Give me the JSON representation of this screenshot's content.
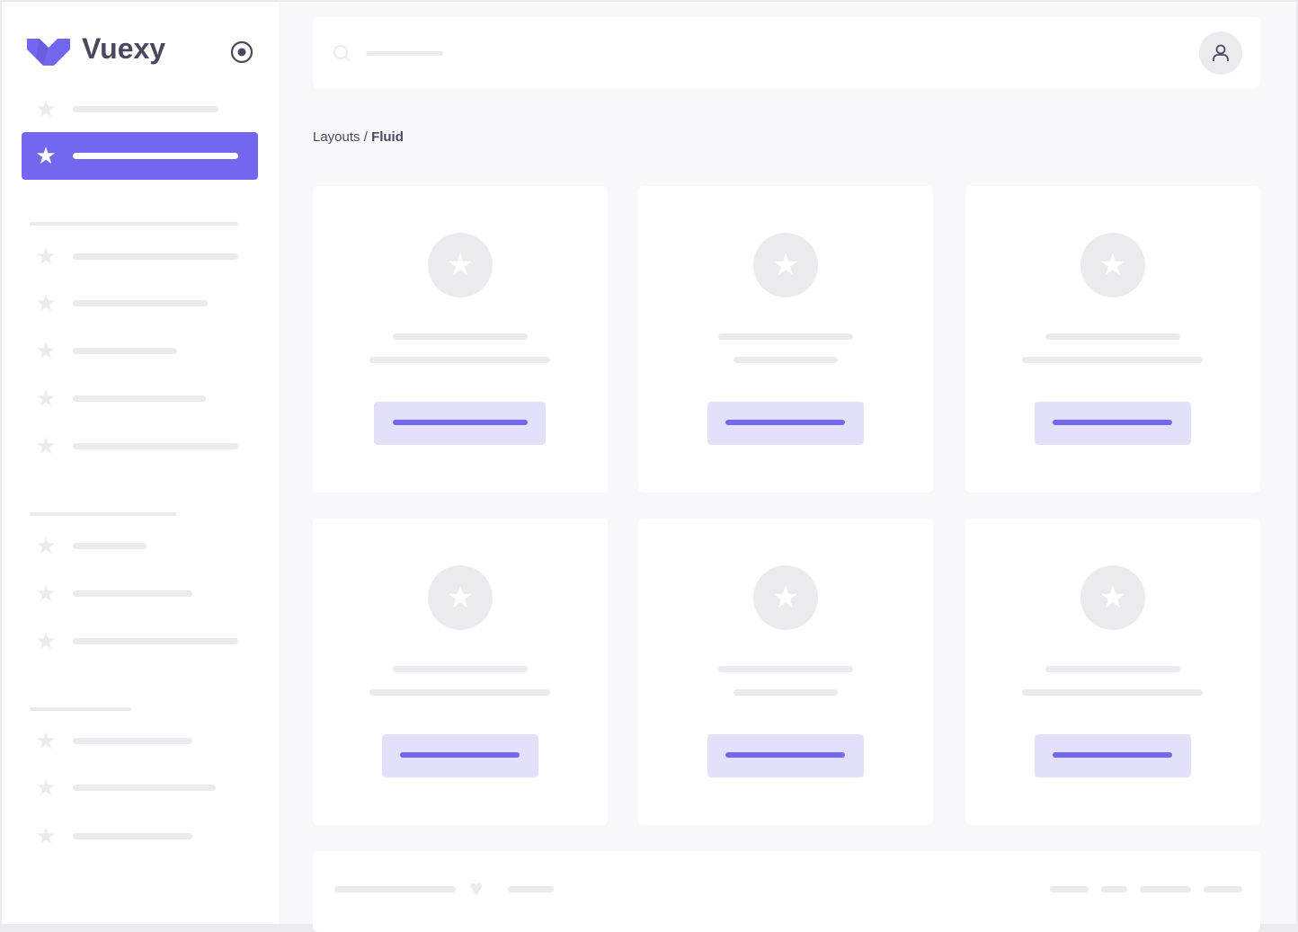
{
  "brand": {
    "name": "Vuexy",
    "color": "#7367f0"
  },
  "icons": {
    "logo": "vuexy-logo",
    "collapse": "radio-circle-icon",
    "nav": "star-icon",
    "search": "search-icon",
    "user": "user-icon",
    "footer": "heart-icon"
  },
  "breadcrumb": {
    "parent": "Layouts",
    "separator": " / ",
    "current": "Fluid"
  },
  "colors": {
    "primary": "#7367f0",
    "primary_light": "#e3e0fc",
    "skeleton": "#ebebef",
    "background": "#f8f8fa"
  }
}
